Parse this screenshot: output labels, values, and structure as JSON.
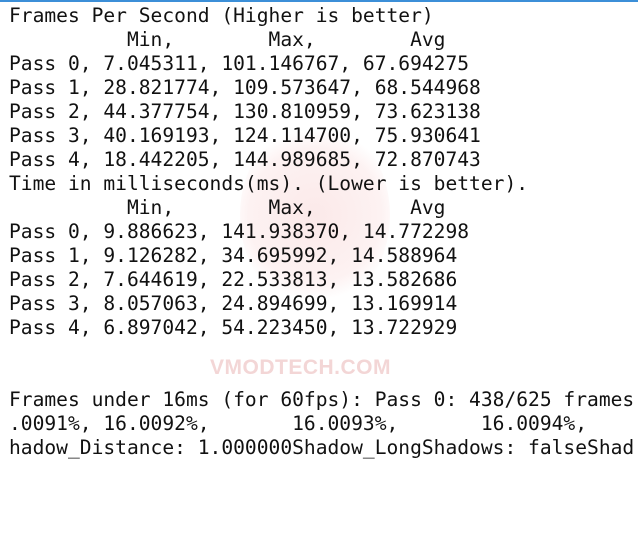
{
  "watermark": {
    "text": "VMODTECH.COM",
    "color": "#f3d6d6"
  },
  "accent_color": "#3c8fd8",
  "lines": [
    "Frames Per Second (Higher is better)",
    "          Min,        Max,        Avg",
    "Pass 0, 7.045311, 101.146767, 67.694275",
    "Pass 1, 28.821774, 109.573647, 68.544968",
    "Pass 2, 44.377754, 130.810959, 73.623138",
    "Pass 3, 40.169193, 124.114700, 75.930641",
    "Pass 4, 18.442205, 144.989685, 72.870743",
    "Time in milliseconds(ms). (Lower is better).",
    "          Min,        Max,        Avg",
    "Pass 0, 9.886623, 141.938370, 14.772298",
    "Pass 1, 9.126282, 34.695992, 14.588964",
    "Pass 2, 7.644619, 22.533813, 13.582686",
    "Pass 3, 8.057063, 24.894699, 13.169914",
    "Pass 4, 6.897042, 54.223450, 13.722929",
    "",
    "",
    "Frames under 16ms (for 60fps): Pass 0: 438/625 frames",
    ".0091%, 16.0092%,       16.0093%,       16.0094%,",
    "hadow_Distance: 1.000000Shadow_LongShadows: falseShad"
  ]
}
